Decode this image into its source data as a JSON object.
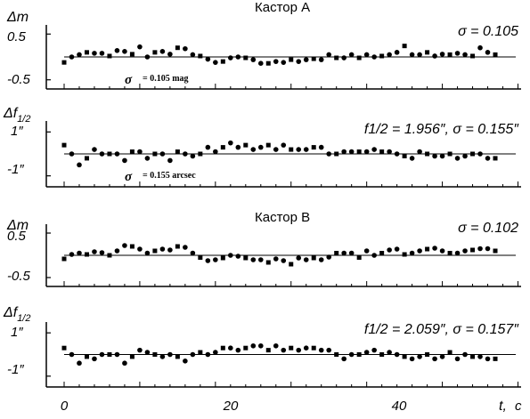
{
  "chart_data": [
    {
      "type": "scatter",
      "title": "Кастор А",
      "ylabel": "Δm",
      "yticks": [
        "0.5",
        "-0.5"
      ],
      "ylim": [
        -0.7,
        0.7
      ],
      "xlim": [
        0,
        59
      ],
      "stat": "σ = 0.105",
      "note_symbol": "σ",
      "note_text": "= 0.105 mag",
      "y": [
        -0.12,
        0.0,
        0.05,
        0.1,
        0.08,
        0.08,
        0.02,
        0.14,
        0.12,
        0.06,
        0.22,
        0.0,
        0.1,
        0.12,
        0.06,
        0.2,
        0.18,
        0.05,
        0.02,
        -0.05,
        -0.12,
        -0.1,
        -0.02,
        0.0,
        -0.02,
        -0.06,
        -0.14,
        -0.14,
        -0.1,
        -0.12,
        -0.06,
        -0.1,
        -0.06,
        -0.04,
        -0.06,
        0.05,
        -0.02,
        -0.02,
        0.05,
        -0.02,
        0.05,
        0.0,
        0.02,
        0.05,
        0.1,
        0.24,
        0.05,
        0.05,
        0.1,
        0.02,
        0.06,
        0.05,
        0.08,
        0.05,
        0.02,
        0.2,
        0.1,
        0.05
      ]
    },
    {
      "type": "scatter",
      "title": "",
      "ylabel": "Δf1/2",
      "yticks": [
        "1″",
        "-1″"
      ],
      "ylim": [
        -1.5,
        1.5
      ],
      "xlim": [
        0,
        59
      ],
      "stat": "f1/2 = 1.956″,   σ = 0.155″",
      "note_symbol": "σ",
      "note_text": "= 0.155 arcsec",
      "y": [
        0.4,
        0.0,
        -0.5,
        -0.2,
        0.2,
        0.0,
        0.0,
        0.0,
        -0.3,
        0.1,
        0.1,
        -0.2,
        0.0,
        0.0,
        -0.3,
        0.1,
        0.0,
        -0.1,
        0.0,
        0.3,
        0.1,
        0.3,
        0.5,
        0.3,
        0.4,
        0.2,
        0.3,
        0.4,
        0.2,
        0.4,
        0.2,
        0.2,
        0.2,
        0.3,
        0.3,
        0.0,
        0.0,
        0.1,
        0.1,
        0.1,
        0.1,
        0.2,
        0.1,
        0.1,
        0.0,
        -0.1,
        -0.2,
        0.1,
        0.0,
        -0.1,
        -0.1,
        0.0,
        -0.2,
        -0.1,
        0.0,
        0.0,
        -0.2,
        -0.2
      ]
    },
    {
      "type": "scatter",
      "title": "Кастор В",
      "ylabel": "Δm",
      "yticks": [
        "0.5",
        "-0.5"
      ],
      "ylim": [
        -0.7,
        0.7
      ],
      "xlim": [
        0,
        59
      ],
      "stat": "σ = 0.102",
      "y": [
        -0.08,
        0.02,
        0.05,
        0.02,
        0.08,
        0.06,
        0.0,
        0.1,
        0.22,
        0.2,
        0.14,
        0.05,
        0.1,
        0.14,
        0.12,
        0.2,
        0.18,
        0.05,
        -0.05,
        -0.12,
        -0.1,
        -0.06,
        0.0,
        -0.02,
        -0.06,
        -0.1,
        -0.1,
        -0.16,
        -0.08,
        -0.12,
        -0.2,
        -0.06,
        -0.1,
        -0.06,
        -0.1,
        -0.04,
        0.05,
        0.05,
        0.05,
        -0.05,
        0.1,
        0.0,
        0.05,
        0.12,
        0.14,
        0.02,
        0.05,
        0.1,
        0.14,
        0.16,
        0.1,
        0.05,
        0.05,
        0.1,
        0.12,
        0.15,
        0.15,
        0.1
      ]
    },
    {
      "type": "scatter",
      "title": "",
      "ylabel": "Δf1/2",
      "yticks": [
        "1″",
        "-1″"
      ],
      "ylim": [
        -1.5,
        1.5
      ],
      "xlim": [
        0,
        59
      ],
      "stat": "f1/2 = 2.059″,   σ = 0.157″",
      "y": [
        0.3,
        0.0,
        -0.4,
        -0.1,
        -0.2,
        0.0,
        0.0,
        0.0,
        -0.4,
        -0.1,
        0.2,
        0.1,
        0.0,
        -0.1,
        0.0,
        -0.1,
        -0.3,
        0.0,
        0.1,
        0.0,
        0.1,
        0.3,
        0.3,
        0.2,
        0.3,
        0.4,
        0.4,
        0.2,
        0.4,
        0.2,
        0.3,
        0.2,
        0.3,
        0.3,
        0.2,
        0.2,
        0.0,
        -0.2,
        0.0,
        0.0,
        0.1,
        0.2,
        0.0,
        0.1,
        0.0,
        -0.1,
        -0.2,
        -0.1,
        0.0,
        -0.2,
        -0.1,
        0.1,
        -0.2,
        0.0,
        -0.1,
        -0.1,
        -0.2,
        -0.2
      ]
    }
  ],
  "x_axis": {
    "ticks": [
      {
        "value": 0,
        "label": "0"
      },
      {
        "value": 20,
        "label": "20"
      },
      {
        "value": 40,
        "label": "40"
      }
    ],
    "label_var": "t,",
    "label_unit": "c"
  }
}
